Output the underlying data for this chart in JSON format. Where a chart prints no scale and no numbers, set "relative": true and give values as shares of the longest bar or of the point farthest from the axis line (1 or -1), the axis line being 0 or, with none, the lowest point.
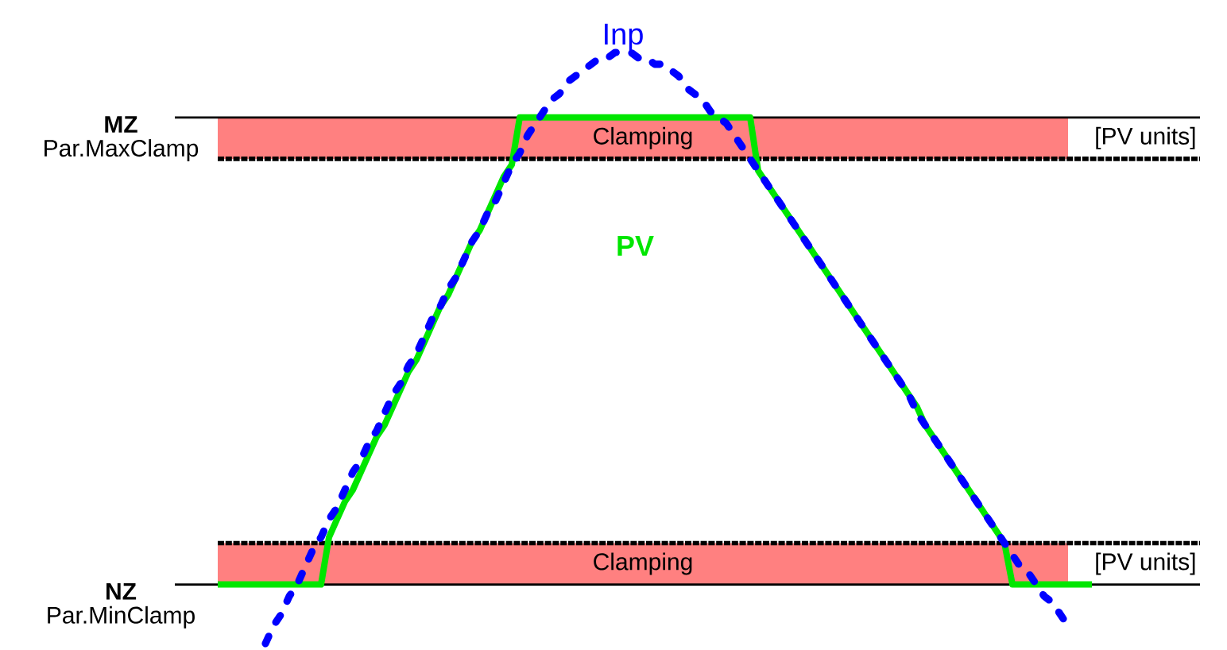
{
  "chart_data": {
    "type": "line",
    "relative": true,
    "categories": [
      null,
      null,
      null,
      null,
      null,
      null,
      null,
      null,
      null,
      null,
      null,
      null,
      null,
      null,
      null,
      null,
      null,
      null,
      null,
      null,
      null,
      null,
      null,
      null,
      null,
      null,
      null,
      null,
      null,
      null,
      null,
      null,
      null,
      null,
      null,
      null,
      null,
      null,
      null,
      null,
      null,
      null,
      null,
      null,
      null,
      null,
      null,
      null,
      null,
      null,
      null,
      null,
      null,
      null,
      null,
      null,
      null,
      null,
      null,
      null,
      null,
      null,
      null,
      null,
      null,
      null,
      null,
      null,
      null,
      null,
      null,
      null,
      null,
      null,
      null,
      null,
      null,
      null,
      null,
      null,
      null,
      null,
      null,
      null,
      null,
      null,
      null,
      null,
      null,
      null,
      null,
      null,
      null,
      null,
      null,
      null,
      null,
      null,
      null,
      null,
      null,
      null,
      null,
      null,
      null,
      null,
      null,
      null,
      null,
      null,
      null
    ],
    "series": [
      {
        "name": "PV",
        "color": "#00e600",
        "line_style": "solid",
        "values": [
          0.1,
          0.1,
          0.1,
          0.1,
          0.1,
          0.1,
          0.1,
          0.1,
          0.1,
          0.1,
          0.1,
          0.1,
          0.1,
          0.1,
          0.18,
          0.21,
          0.24,
          0.26,
          0.29,
          0.32,
          0.35,
          0.37,
          0.4,
          0.43,
          0.46,
          0.48,
          0.51,
          0.54,
          0.57,
          0.59,
          0.62,
          0.65,
          0.68,
          0.7,
          0.73,
          0.76,
          0.79,
          0.81,
          0.89,
          0.89,
          0.89,
          0.89,
          0.89,
          0.89,
          0.89,
          0.89,
          0.89,
          0.89,
          0.89,
          0.89,
          0.89,
          0.89,
          0.89,
          0.89,
          0.89,
          0.89,
          0.89,
          0.89,
          0.89,
          0.89,
          0.89,
          0.89,
          0.89,
          0.89,
          0.89,
          0.89,
          0.89,
          0.89,
          0.8,
          0.78,
          0.76,
          0.74,
          0.72,
          0.7,
          0.68,
          0.66,
          0.64,
          0.62,
          0.6,
          0.58,
          0.56,
          0.54,
          0.52,
          0.5,
          0.48,
          0.46,
          0.44,
          0.42,
          0.4,
          0.37,
          0.35,
          0.33,
          0.31,
          0.29,
          0.27,
          0.25,
          0.23,
          0.21,
          0.19,
          0.17,
          0.1,
          0.1,
          0.1,
          0.1,
          0.1,
          0.1,
          0.1,
          0.1,
          0.1,
          0.1,
          0.1
        ]
      },
      {
        "name": "Inp",
        "color": "#0000ff",
        "line_style": "dashed",
        "values": [
          null,
          null,
          null,
          null,
          null,
          null,
          0.0,
          0.03,
          0.05,
          0.08,
          0.1,
          0.13,
          0.16,
          0.18,
          0.21,
          0.23,
          0.26,
          0.29,
          0.31,
          0.34,
          0.36,
          0.39,
          0.42,
          0.44,
          0.47,
          0.49,
          0.52,
          0.55,
          0.57,
          0.6,
          0.62,
          0.65,
          0.68,
          0.7,
          0.73,
          0.75,
          0.78,
          0.81,
          0.83,
          0.86,
          0.88,
          0.9,
          0.92,
          0.93,
          0.95,
          0.96,
          0.97,
          0.98,
          0.99,
          0.99,
          1.0,
          1.0,
          1.0,
          0.99,
          0.99,
          0.98,
          0.98,
          0.97,
          0.96,
          0.94,
          0.93,
          0.92,
          0.9,
          0.89,
          0.88,
          0.86,
          0.84,
          0.82,
          0.8,
          0.78,
          0.76,
          0.74,
          0.72,
          0.7,
          0.68,
          0.66,
          0.64,
          0.62,
          0.6,
          0.58,
          0.56,
          0.54,
          0.52,
          0.5,
          0.48,
          0.46,
          0.44,
          0.42,
          0.39,
          0.37,
          0.35,
          0.33,
          0.31,
          0.29,
          0.27,
          0.25,
          0.23,
          0.21,
          0.19,
          0.17,
          0.15,
          0.13,
          0.12,
          0.1,
          0.08,
          0.07,
          0.05,
          0.03,
          null,
          null,
          null
        ]
      }
    ],
    "ref_lines": [
      {
        "axis": "y",
        "value": 0.89,
        "label": "**MZ** Par.MaxClamp"
      },
      {
        "axis": "y",
        "value": 0.1,
        "label": "**NZ** Par.MinClamp"
      },
      {
        "axis": "y",
        "value": 0.82,
        "line_style": "dotted"
      },
      {
        "axis": "y",
        "value": 0.17,
        "line_style": "dotted"
      }
    ],
    "bands": [
      {
        "axis": "y",
        "from": 0.82,
        "to": 0.89,
        "label": "Clamping",
        "color": "#ff8080"
      },
      {
        "axis": "y",
        "from": 0.1,
        "to": 0.17,
        "label": "Clamping",
        "color": "#ff8080"
      }
    ],
    "annotations": [
      "[PV units]",
      "[PV units]"
    ]
  }
}
